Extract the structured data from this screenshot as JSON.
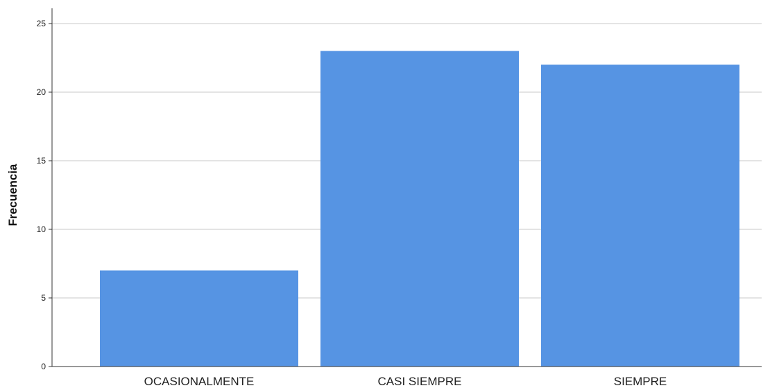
{
  "chart_data": {
    "type": "bar",
    "categories": [
      "OCASIONALMENTE",
      "CASI SIEMPRE",
      "SIEMPRE"
    ],
    "values": [
      7,
      23,
      22
    ],
    "title": "",
    "xlabel": "",
    "ylabel": "Frecuencia",
    "ylim": [
      0,
      25
    ],
    "yticks": [
      0,
      5,
      10,
      15,
      20,
      25
    ],
    "grid": "horizontal",
    "legend": "none",
    "bar_color": "#5694e3"
  }
}
